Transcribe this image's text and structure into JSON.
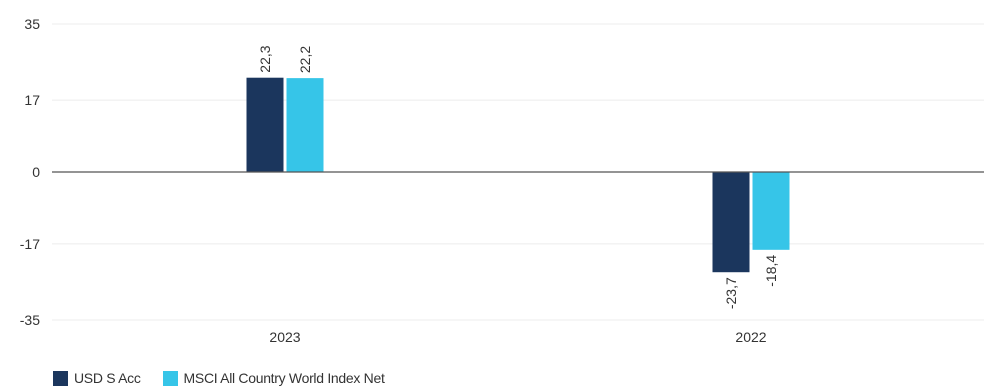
{
  "chart_data": {
    "type": "bar",
    "categories": [
      "2023",
      "2022"
    ],
    "series": [
      {
        "name": "USD S Acc",
        "values": [
          22.3,
          -23.7
        ],
        "labels": [
          "22,3",
          "-23,7"
        ],
        "color": "#1b365d"
      },
      {
        "name": "MSCI All Country World Index Net",
        "values": [
          22.2,
          -18.4
        ],
        "labels": [
          "22,2",
          "-18,4"
        ],
        "color": "#36c5e8"
      }
    ],
    "yticks": [
      35,
      17,
      0,
      -17,
      -35
    ],
    "ylim": [
      -35,
      35
    ],
    "grid": true,
    "legend_position": "bottom-left",
    "title": "",
    "xlabel": "",
    "ylabel": ""
  }
}
